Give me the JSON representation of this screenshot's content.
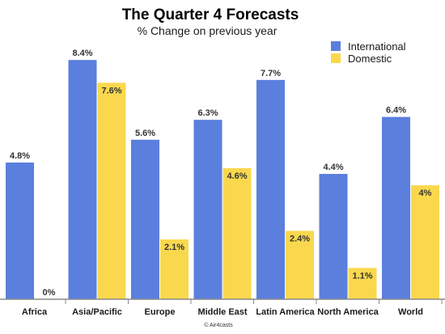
{
  "chart_data": {
    "type": "bar",
    "title": "The Quarter 4 Forecasts",
    "subtitle": "% Change on previous year",
    "categories": [
      "Africa",
      "Asia/Pacific",
      "Europe",
      "Middle East",
      "Latin America",
      "North America",
      "World"
    ],
    "series": [
      {
        "name": "International",
        "color": "#5b7fdd",
        "values": [
          4.8,
          8.4,
          5.6,
          6.3,
          7.7,
          4.4,
          6.4
        ],
        "labels": [
          "4.8%",
          "8.4%",
          "5.6%",
          "6.3%",
          "7.7%",
          "4.4%",
          "6.4%"
        ]
      },
      {
        "name": "Domestic",
        "color": "#fad84e",
        "values": [
          0,
          7.6,
          2.1,
          4.6,
          2.4,
          1.1,
          4
        ],
        "labels": [
          "0%",
          "7.6%",
          "2.1%",
          "4.6%",
          "2.4%",
          "1.1%",
          "4%"
        ]
      }
    ],
    "ylim": [
      0,
      9.2
    ],
    "grid": false,
    "legend_position": "top-right",
    "credit": "© Air4casts"
  }
}
